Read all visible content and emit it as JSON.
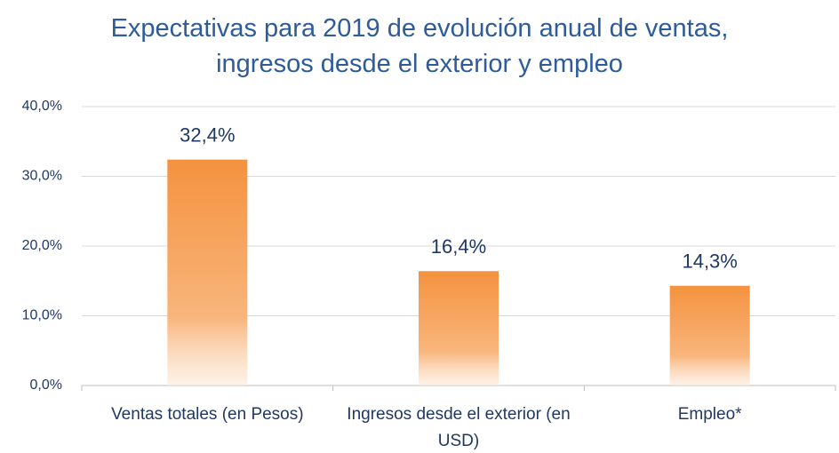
{
  "chart_data": {
    "type": "bar",
    "title": "Expectativas para 2019 de evolución anual de ventas, ingresos desde el exterior y empleo",
    "categories": [
      "Ventas totales (en Pesos)",
      "Ingresos desde el exterior (en USD)",
      "Empleo*"
    ],
    "values": [
      32.4,
      16.4,
      14.3
    ],
    "value_labels": [
      "32,4%",
      "16,4%",
      "14,3%"
    ],
    "color": "#f4923f",
    "ylim": [
      0,
      40
    ],
    "yticks": [
      {
        "value": 0,
        "label": "0,0%"
      },
      {
        "value": 10,
        "label": "10,0%"
      },
      {
        "value": 20,
        "label": "20,0%"
      },
      {
        "value": 30,
        "label": "30,0%"
      },
      {
        "value": 40,
        "label": "40,0%"
      }
    ],
    "grid": true
  }
}
